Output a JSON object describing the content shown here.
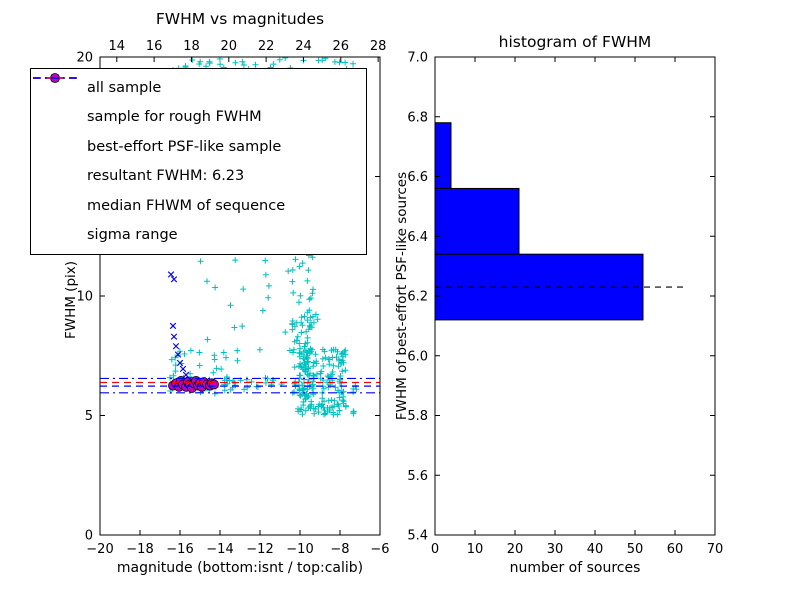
{
  "chart_data": [
    {
      "type": "scatter",
      "title": "FWHM vs magnitudes",
      "xlabel": "magnitude (bottom:isnt / top:calib)",
      "ylabel": "FWHM (pix)",
      "xlim": [
        -20,
        -6
      ],
      "ylim": [
        0,
        20
      ],
      "xticks": [
        -20,
        -18,
        -16,
        -14,
        -12,
        -10,
        -8,
        -6
      ],
      "top_axis": {
        "xlim": [
          13.1,
          28.1
        ],
        "ticks": [
          14,
          16,
          18,
          20,
          22,
          24,
          26,
          28
        ]
      },
      "yticks": [
        0,
        5,
        10,
        15,
        20
      ],
      "legend_position": "upper left",
      "legend": [
        {
          "label": "all sample",
          "marker": "plus",
          "color": "#00bfbf"
        },
        {
          "label": "sample for rough FWHM",
          "marker": "x",
          "color": "#0000ff"
        },
        {
          "label": "best-effort PSF-like sample",
          "marker": "circle",
          "color": "#bf00bf",
          "edge": "#000000"
        },
        {
          "label": "resultant FWHM: 6.23",
          "marker": "dashed",
          "color": "#0000ff"
        },
        {
          "label": "median FHWM of sequence",
          "marker": "dashed",
          "color": "#ff0000"
        },
        {
          "label": "sigma range",
          "marker": "dashdot",
          "color": "#0000ff"
        }
      ],
      "series": [
        {
          "name": "all sample",
          "marker": "plus",
          "color": "#00bfbf",
          "clusters": [
            {
              "count": 45,
              "x": [
                -17.0,
                -6.9
              ],
              "y": [
                18.7,
                20.0
              ],
              "ybias": 0.45
            },
            {
              "count": 70,
              "x": [
                -16.8,
                -8.4
              ],
              "y": [
                7.0,
                18.8
              ],
              "ybias": 1.0
            },
            {
              "count": 110,
              "x": [
                -10.4,
                -9.3
              ],
              "y": [
                5.8,
                14.5
              ],
              "ybias": 1.7
            },
            {
              "count": 150,
              "x": [
                -10.1,
                -7.7
              ],
              "y": [
                5.0,
                7.8
              ],
              "ybias": 1.1
            },
            {
              "count": 35,
              "x": [
                -16.6,
                -13.6
              ],
              "y": [
                5.9,
                7.7
              ],
              "ybias": 1.0
            },
            {
              "count": 25,
              "x": [
                -14.6,
                -10.4
              ],
              "y": [
                6.05,
                6.6
              ],
              "ybias": 1.0
            },
            {
              "count": 12,
              "x": [
                -8.3,
                -7.1
              ],
              "y": [
                4.9,
                6.3
              ],
              "ybias": 1.0
            }
          ]
        },
        {
          "name": "sample for rough FWHM",
          "marker": "x",
          "color": "#0000ff",
          "points": [
            [
              -16.45,
              10.9
            ],
            [
              -16.3,
              10.7
            ],
            [
              -16.35,
              8.75
            ],
            [
              -16.3,
              8.3
            ],
            [
              -16.2,
              7.9
            ],
            [
              -16.1,
              7.55
            ],
            [
              -16.0,
              7.2
            ],
            [
              -15.85,
              6.95
            ],
            [
              -15.7,
              6.7
            ],
            [
              -15.55,
              6.5
            ],
            [
              -15.4,
              6.4
            ]
          ]
        },
        {
          "name": "best-effort PSF-like sample",
          "marker": "circle",
          "color": "#bf00bf",
          "edge": "#000000",
          "points": [
            [
              -16.35,
              6.25
            ],
            [
              -16.2,
              6.35
            ],
            [
              -16.05,
              6.2
            ],
            [
              -15.95,
              6.45
            ],
            [
              -15.85,
              6.3
            ],
            [
              -15.7,
              6.2
            ],
            [
              -15.6,
              6.4
            ],
            [
              -15.5,
              6.3
            ],
            [
              -15.4,
              6.15
            ],
            [
              -15.3,
              6.35
            ],
            [
              -15.2,
              6.45
            ],
            [
              -15.1,
              6.25
            ],
            [
              -15.0,
              6.35
            ],
            [
              -14.9,
              6.2
            ],
            [
              -14.8,
              6.4
            ],
            [
              -14.65,
              6.3
            ],
            [
              -14.5,
              6.25
            ],
            [
              -14.4,
              6.35
            ],
            [
              -14.3,
              6.3
            ]
          ]
        }
      ],
      "hlines": [
        {
          "name": "resultant FWHM",
          "y": 6.23,
          "style": "dashed",
          "color": "#0000ff"
        },
        {
          "name": "median FWHM",
          "y": 6.38,
          "style": "dashed",
          "color": "#ff0000"
        },
        {
          "name": "sigma upper",
          "y": 6.55,
          "style": "dashdot",
          "color": "#0000ff"
        },
        {
          "name": "sigma lower",
          "y": 5.95,
          "style": "dashdot",
          "color": "#0000ff"
        }
      ]
    },
    {
      "type": "bar",
      "orientation": "horizontal",
      "title": "histogram of FWHM",
      "xlabel": "number of sources",
      "ylabel": "FWHM of best-effort PSF-like sources",
      "xlim": [
        0,
        70
      ],
      "ylim": [
        5.4,
        7.0
      ],
      "xticks": [
        0,
        10,
        20,
        30,
        40,
        50,
        60,
        70
      ],
      "ytick_labels": [
        "5.4",
        "5.6",
        "5.8",
        "6.0",
        "6.2",
        "6.4",
        "6.6",
        "6.8",
        "7.0"
      ],
      "bar_color": "#0000ff",
      "bar_edge": "#000000",
      "bins": [
        {
          "from": 6.12,
          "to": 6.34,
          "count": 52
        },
        {
          "from": 6.34,
          "to": 6.56,
          "count": 21
        },
        {
          "from": 6.56,
          "to": 6.78,
          "count": 4
        }
      ],
      "hline": {
        "y": 6.23,
        "x_end": 62,
        "style": "dashed",
        "color": "#000000"
      }
    }
  ]
}
